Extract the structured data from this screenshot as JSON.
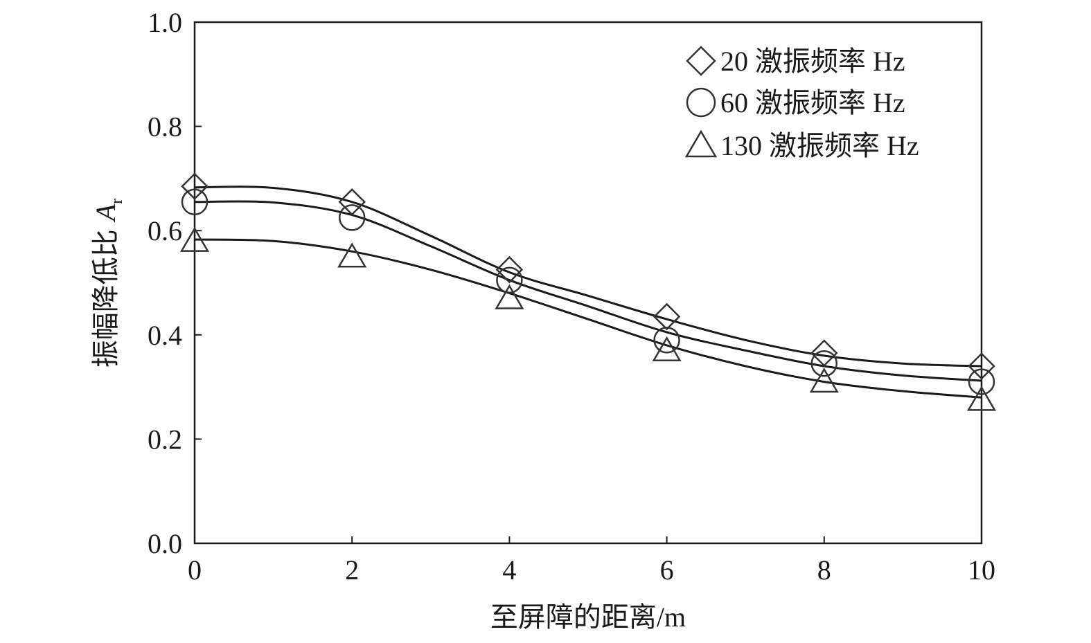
{
  "chart_data": {
    "type": "scatter",
    "xlabel": "至屏障的距离/m",
    "ylabel": "振幅降低比",
    "ylabel_symbol": "A",
    "ylabel_subscript": "r",
    "xlim": [
      0,
      10
    ],
    "ylim": [
      0.0,
      1.0
    ],
    "x_ticks": [
      "0",
      "2",
      "4",
      "6",
      "8",
      "10"
    ],
    "y_ticks": [
      "0.0",
      "0.2",
      "0.4",
      "0.6",
      "0.8",
      "1.0"
    ],
    "grid": false,
    "legend_position": "top-right",
    "x": [
      0,
      2,
      4,
      6,
      8,
      10
    ],
    "series": [
      {
        "name": "20 激振频率 Hz",
        "marker": "diamond",
        "values": [
          0.685,
          0.655,
          0.525,
          0.435,
          0.365,
          0.34
        ],
        "fit": [
          [
            0,
            0.683
          ],
          [
            1,
            0.682
          ],
          [
            2,
            0.655
          ],
          [
            3,
            0.59
          ],
          [
            4,
            0.52
          ],
          [
            5,
            0.475
          ],
          [
            6,
            0.43
          ],
          [
            7,
            0.39
          ],
          [
            8,
            0.36
          ],
          [
            9,
            0.345
          ],
          [
            10,
            0.34
          ]
        ]
      },
      {
        "name": "60 激振频率 Hz",
        "marker": "circle",
        "values": [
          0.655,
          0.625,
          0.505,
          0.39,
          0.345,
          0.31
        ],
        "fit": [
          [
            0,
            0.655
          ],
          [
            1,
            0.654
          ],
          [
            2,
            0.63
          ],
          [
            3,
            0.57
          ],
          [
            4,
            0.505
          ],
          [
            5,
            0.455
          ],
          [
            6,
            0.405
          ],
          [
            7,
            0.37
          ],
          [
            8,
            0.34
          ],
          [
            9,
            0.322
          ],
          [
            10,
            0.312
          ]
        ]
      },
      {
        "name": "130 激振频率 Hz",
        "marker": "triangle",
        "values": [
          0.58,
          0.55,
          0.47,
          0.37,
          0.31,
          0.275
        ],
        "fit": [
          [
            0,
            0.583
          ],
          [
            1,
            0.58
          ],
          [
            2,
            0.56
          ],
          [
            3,
            0.525
          ],
          [
            4,
            0.48
          ],
          [
            5,
            0.43
          ],
          [
            6,
            0.38
          ],
          [
            7,
            0.34
          ],
          [
            8,
            0.31
          ],
          [
            9,
            0.292
          ],
          [
            10,
            0.28
          ]
        ]
      }
    ]
  }
}
